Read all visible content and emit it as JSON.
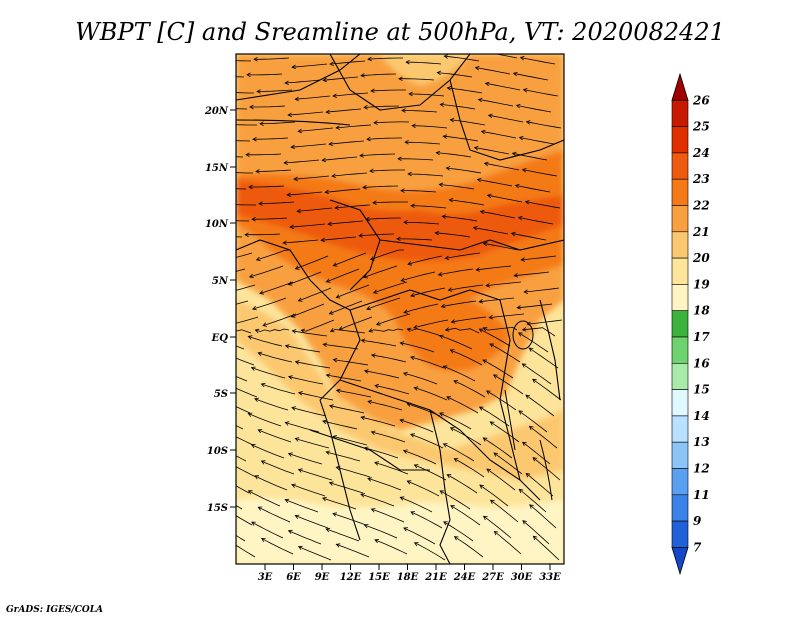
{
  "title": "WBPT [C] and Sreamline at 500hPa, VT: 2020082421",
  "credit": "GrADS: IGES/COLA",
  "lat_labels": [
    "20N",
    "15N",
    "10N",
    "5N",
    "EQ",
    "5S",
    "10S",
    "15S"
  ],
  "lon_labels": [
    "3E",
    "6E",
    "9E",
    "12E",
    "15E",
    "18E",
    "21E",
    "24E",
    "27E",
    "30E",
    "33E"
  ],
  "colorbar": {
    "labels": [
      "26",
      "25",
      "24",
      "23",
      "22",
      "21",
      "20",
      "19",
      "18",
      "17",
      "16",
      "15",
      "14",
      "13",
      "12",
      "11",
      "9",
      "7"
    ],
    "colors": [
      "#a00000",
      "#c81a00",
      "#e03000",
      "#ee5a10",
      "#f47a18",
      "#f8a040",
      "#fbc870",
      "#fde49b",
      "#fff5c4",
      "#3cb43c",
      "#6ed26e",
      "#a8eaa8",
      "#e0f8ff",
      "#b8e0ff",
      "#8cc4f8",
      "#5aa0f0",
      "#3a82e8",
      "#2060d8",
      "#1448c8"
    ]
  },
  "colors": {
    "frame": "#000000",
    "streamline": "#000000",
    "border": "#000000"
  }
}
